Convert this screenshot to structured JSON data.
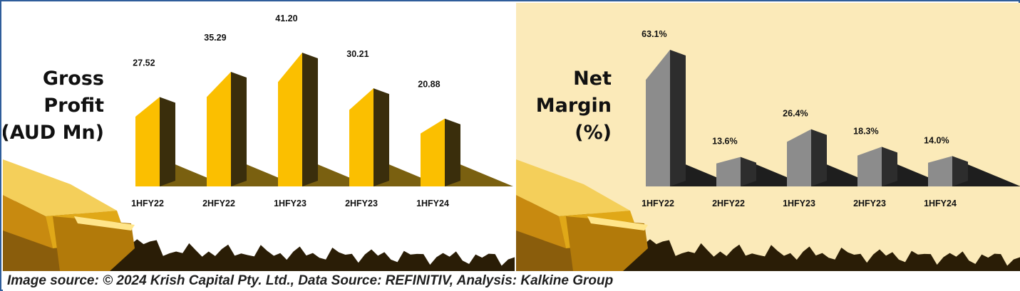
{
  "chart_data": [
    {
      "type": "bar",
      "ylabel_lines": [
        "Gross",
        "Profit",
        "(AUD Mn)"
      ],
      "categories": [
        "1HFY22",
        "2HFY22",
        "1HFY23",
        "2HFY23",
        "1HFY24"
      ],
      "values": [
        27.52,
        35.29,
        41.2,
        30.21,
        20.88
      ],
      "value_labels": [
        "27.52",
        "35.29",
        "41.20",
        "30.21",
        "20.88"
      ],
      "colors": {
        "bar_front": "#fbbf00",
        "bar_side": "#3a2e0c",
        "shadow": "#7a6010"
      }
    },
    {
      "type": "bar",
      "ylabel_lines": [
        "Net",
        "Margin",
        "(%)"
      ],
      "categories": [
        "1HFY22",
        "2HFY22",
        "1HFY23",
        "2HFY23",
        "1HFY24"
      ],
      "values": [
        63.1,
        13.6,
        26.4,
        18.3,
        14.0
      ],
      "value_labels": [
        "63.1%",
        "13.6%",
        "26.4%",
        "18.3%",
        "14.0%"
      ],
      "colors": {
        "bar_front": "#8c8c8c",
        "bar_side": "#2d2d2d",
        "shadow": "#1e1e1e"
      }
    }
  ],
  "footer": {
    "source": "Image source: © 2024 Krish Capital Pty. Ltd., Data Source: REFINITIV, Analysis: Kalkine Group"
  },
  "colors": {
    "left_background": "#ffffff",
    "right_background": "#fbeab9",
    "frame_border": "#2f5d9a",
    "gold": "#e0a818"
  }
}
